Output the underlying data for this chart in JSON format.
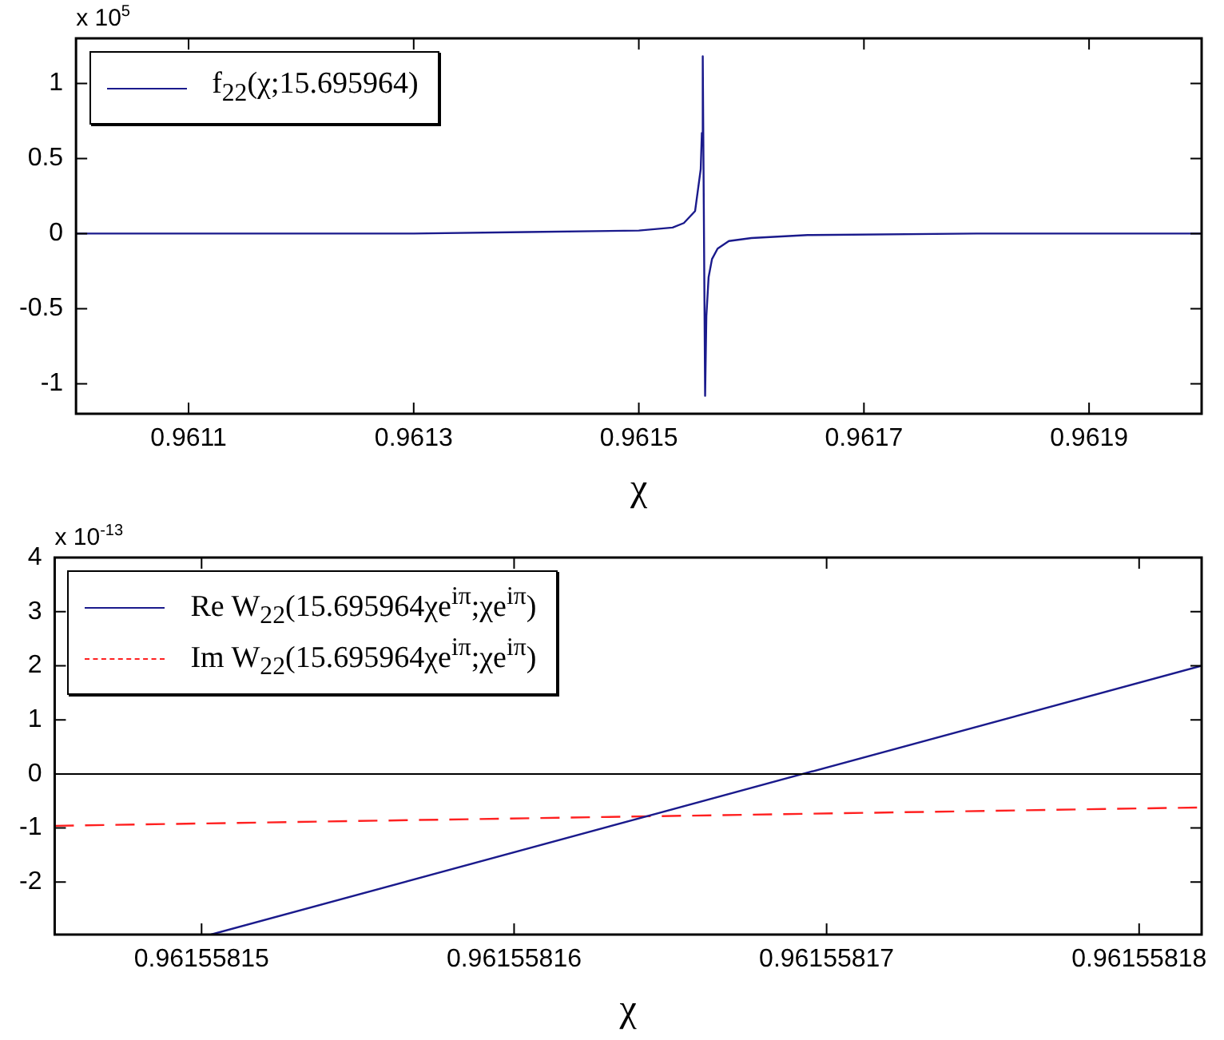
{
  "chart_data": [
    {
      "type": "line",
      "xlabel": "χ",
      "annotations": [
        "x 10$^{5}$"
      ],
      "legend": "top left",
      "grid": false,
      "marker": "none",
      "xlim": [
        0.961,
        0.962
      ],
      "xticks": [
        0.9611,
        0.9613,
        0.9615,
        0.9617,
        0.9619
      ],
      "ylim": [
        -1.2,
        1.3
      ],
      "yticks": [
        -1,
        -0.5,
        0,
        0.5,
        1
      ],
      "series": [
        {
          "name": "f$_{22}$(χ;15.695964)",
          "color": "#1a1a8c",
          "line_style": "solid",
          "x": [
            0.961,
            0.9613,
            0.9614,
            0.9615,
            0.96153,
            0.96154,
            0.96155,
            0.961555,
            0.961556,
            0.9615568,
            0.9615589,
            0.96156,
            0.961562,
            0.961565,
            0.96157,
            0.96158,
            0.9616,
            0.96165,
            0.9618,
            0.962
          ],
          "values": [
            0,
            0,
            0.01,
            0.02,
            0.04,
            0.07,
            0.15,
            0.43,
            0.67,
            1.18,
            -1.08,
            -0.55,
            -0.29,
            -0.17,
            -0.1,
            -0.05,
            -0.03,
            -0.01,
            0,
            0
          ]
        }
      ]
    },
    {
      "type": "line",
      "xlabel": "χ",
      "annotations": [
        "x 10$^{-13}$"
      ],
      "legend": "top left",
      "grid": false,
      "marker": "none",
      "xlim": [
        0.9615581453,
        0.961558182
      ],
      "xticks": [
        0.96155815,
        0.96155816,
        0.96155817,
        0.96155818
      ],
      "ylim": [
        -2.97,
        4
      ],
      "yticks": [
        -2,
        -1,
        0,
        1,
        2,
        3,
        4
      ],
      "ref_lines": [
        {
          "axis": "y",
          "value": 0,
          "color": "#000000"
        }
      ],
      "series": [
        {
          "name": "Re W$_{22}$(15.695964χe$^{iπ}$;χe$^{iπ}$)",
          "color": "#1a1a8c",
          "line_style": "solid",
          "x": [
            0.9615581503,
            0.961558182
          ],
          "values": [
            -2.97,
            2.0
          ]
        },
        {
          "name": "Im W$_{22}$(15.695964χe$^{iπ}$;χe$^{iπ}$)",
          "color": "#ff2020",
          "line_style": "dashed",
          "x": [
            0.9615581453,
            0.961558182
          ],
          "values": [
            -0.96,
            -0.62
          ]
        }
      ]
    }
  ]
}
